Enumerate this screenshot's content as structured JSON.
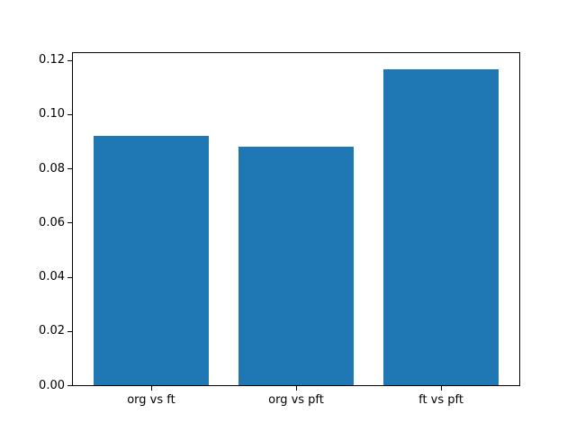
{
  "chart_data": {
    "type": "bar",
    "categories": [
      "org vs ft",
      "org vs pft",
      "ft vs pft"
    ],
    "values": [
      0.092,
      0.088,
      0.1165
    ],
    "title": "",
    "xlabel": "",
    "ylabel": "",
    "ylim": [
      0,
      0.1225
    ],
    "yticks": [
      "0.00",
      "0.02",
      "0.04",
      "0.06",
      "0.08",
      "0.10",
      "0.12"
    ],
    "bar_color": "#1f77b4",
    "grid": false,
    "legend_position": "none",
    "bar_width_fraction": 0.8
  }
}
